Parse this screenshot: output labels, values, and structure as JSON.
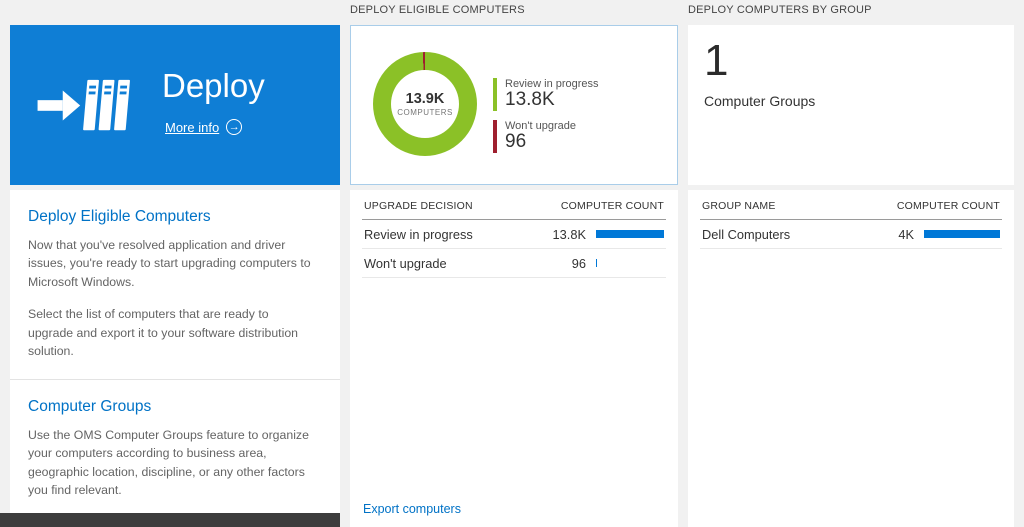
{
  "colors": {
    "accent": "#0072c6",
    "tile_blue": "#0f7ed5",
    "bar": "#0078d7",
    "green": "#8bc127",
    "red": "#9f1f2e",
    "dark_strip": "#3d3d3d"
  },
  "left": {
    "tile": {
      "title": "Deploy",
      "more_info_label": "More info"
    },
    "sections": [
      {
        "heading": "Deploy Eligible Computers",
        "p1": "Now that you've resolved application and driver issues, you're ready to start upgrading computers to Microsoft Windows.",
        "p2": "Select the list of computers that are ready to upgrade and export it to your software distribution solution."
      },
      {
        "heading": "Computer Groups",
        "p1": "Use the OMS Computer Groups feature to organize your computers according to business area, geographic location, discipline, or any other factors you find relevant."
      }
    ]
  },
  "middle": {
    "header": "DEPLOY ELIGIBLE COMPUTERS",
    "donut": {
      "center_value": "13.9K",
      "center_label": "COMPUTERS"
    },
    "legend": [
      {
        "label": "Review in progress",
        "value": "13.8K"
      },
      {
        "label": "Won't upgrade",
        "value": "96"
      }
    ],
    "table": {
      "columns": [
        "UPGRADE DECISION",
        "COMPUTER COUNT"
      ],
      "rows": [
        {
          "label": "Review in progress",
          "value": "13.8K",
          "bar_pct": 100
        },
        {
          "label": "Won't upgrade",
          "value": "96",
          "bar_pct": 2
        }
      ]
    },
    "export_link": "Export computers"
  },
  "right": {
    "header": "DEPLOY COMPUTERS BY GROUP",
    "summary": {
      "value": "1",
      "label": "Computer Groups"
    },
    "table": {
      "columns": [
        "GROUP NAME",
        "COMPUTER COUNT"
      ],
      "rows": [
        {
          "label": "Dell Computers",
          "value": "4K",
          "bar_pct": 100
        }
      ]
    }
  },
  "chart_data": [
    {
      "type": "pie",
      "donut": true,
      "title": "Deploy Eligible Computers",
      "center_text": "13.9K COMPUTERS",
      "labels": [
        "Review in progress",
        "Won't upgrade"
      ],
      "values": [
        13800,
        96
      ],
      "colors": [
        "#8bc127",
        "#9f1f2e"
      ],
      "legend_position": "right"
    },
    {
      "type": "table",
      "title": "Upgrade decision",
      "columns": [
        "UPGRADE DECISION",
        "COMPUTER COUNT"
      ],
      "rows": [
        [
          "Review in progress",
          "13.8K"
        ],
        [
          "Won't upgrade",
          "96"
        ]
      ]
    },
    {
      "type": "table",
      "title": "Computers by group",
      "columns": [
        "GROUP NAME",
        "COMPUTER COUNT"
      ],
      "rows": [
        [
          "Dell Computers",
          "4K"
        ]
      ]
    }
  ]
}
